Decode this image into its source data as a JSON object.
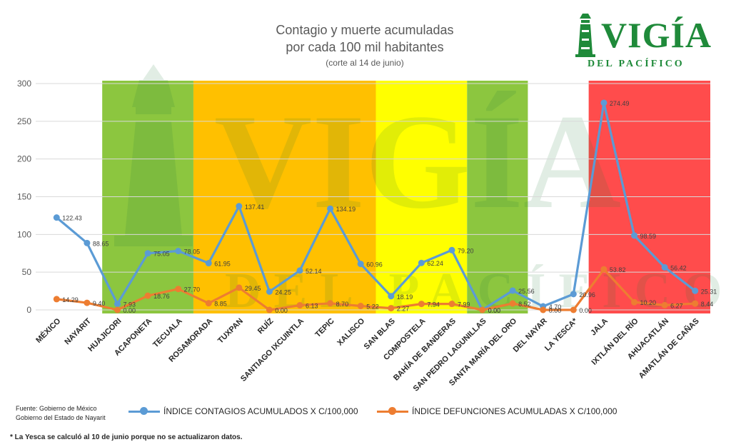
{
  "chart_data": {
    "type": "line",
    "title": "Contagio y muerte acumuladas",
    "title2": "por cada 100 mil habitantes",
    "subtitle": "(corte al 14 de junio)",
    "categories": [
      "MÉXICO",
      "NAYARIT",
      "HUAJICORI",
      "ACAPONETA",
      "TECUALA",
      "ROSAMORADA",
      "TUXPAN",
      "RUÍZ",
      "SANTIAGO IXCUINTLA",
      "TEPIC",
      "XALISCO",
      "SAN BLAS",
      "COMPOSTELA",
      "BAHÍA DE BANDERAS",
      "SAN PEDRO LAGUNILLAS",
      "SANTA MARÍA DEL ORO",
      "DEL NAYAR",
      "LA YESCA*",
      "JALA",
      "IXTLÁN DEL RÍO",
      "AHUACATLÁN",
      "AMATLÁN DE CAÑAS"
    ],
    "ylim": [
      0,
      300
    ],
    "yticks": [
      0,
      50,
      100,
      150,
      200,
      250,
      300
    ],
    "grid": true,
    "legend_position": "bottom",
    "series": [
      {
        "name": "ÍNDICE CONTAGIOS  ACUMULADOS X C/100,000",
        "color": "#5b9bd5",
        "values": [
          122.43,
          88.65,
          7.93,
          75.05,
          78.05,
          61.95,
          137.41,
          24.25,
          52.14,
          134.19,
          60.96,
          18.19,
          62.24,
          79.2,
          0.0,
          25.56,
          4.7,
          20.96,
          274.49,
          98.59,
          56.42,
          25.31
        ],
        "labels": [
          "122.43",
          "88.65",
          "7.93",
          "75.05",
          "78.05",
          "61.95",
          "137.41",
          "24.25",
          "52.14",
          "134.19",
          "60.96",
          "18.19",
          "62.24",
          "79.20",
          "0.00",
          "25.56",
          "4.70",
          "20.96",
          "274.49",
          "98.59",
          "56.42",
          "25.31"
        ]
      },
      {
        "name": "ÍNDICE DEFUNCIONES ACUMULADAS X C/100,000",
        "color": "#ed7d31",
        "values": [
          14.29,
          9.4,
          0.0,
          18.76,
          27.7,
          8.85,
          29.45,
          0.0,
          6.13,
          8.7,
          5.22,
          2.27,
          7.94,
          7.99,
          0.0,
          8.52,
          0.0,
          0.0,
          53.82,
          10.2,
          6.27,
          8.44
        ],
        "labels": [
          "14.29",
          "9.40",
          "0.00",
          "18.76",
          "27.70",
          "8.85",
          "29.45",
          "0.00",
          "6.13",
          "8.70",
          "5.22",
          "2.27",
          "7.94",
          "7.99",
          "0.00",
          "8.52",
          "0.00",
          "0.00",
          "53.82",
          "10.20",
          "6.27",
          "8.44"
        ]
      }
    ],
    "bands": [
      {
        "from": 2,
        "to": 4,
        "color": "#8cc63f"
      },
      {
        "from": 5,
        "to": 10,
        "color": "#ffc000"
      },
      {
        "from": 11,
        "to": 13,
        "color": "#ffff00"
      },
      {
        "from": 14,
        "to": 15,
        "color": "#8cc63f"
      },
      {
        "from": 16,
        "to": 17,
        "color": "#ffffff"
      },
      {
        "from": 18,
        "to": 21,
        "color": "#ff4c4c"
      }
    ]
  },
  "brand": {
    "name": "VIGÍA",
    "tagline": "DEL PACÍFICO",
    "watermark": "VIGÍA",
    "watermark_sub": "DEL PACÍFICO"
  },
  "source": {
    "line1": "Fuente: Gobierno de México",
    "line2": "Gobierno del Estado de Nayarit"
  },
  "footnote": "* La Yesca se calculó al 10 de junio porque no se actualizaron datos."
}
